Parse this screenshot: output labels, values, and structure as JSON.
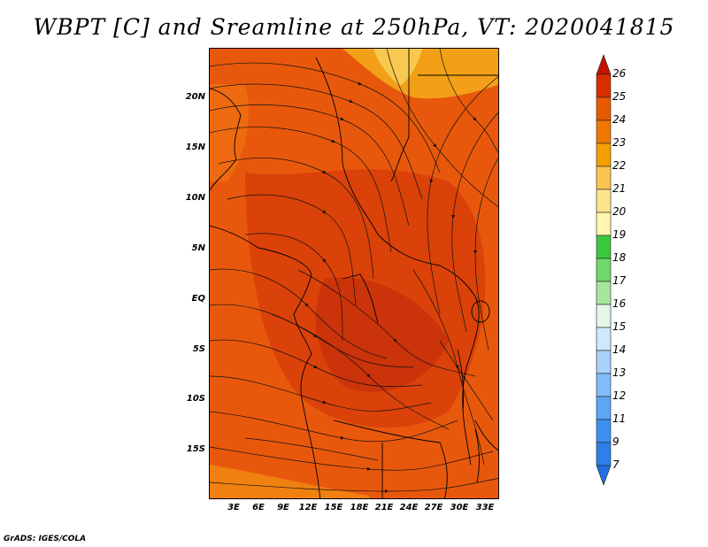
{
  "title": "WBPT [C] and Sreamline at 250hPa, VT: 2020041815",
  "credit": "GrADS: IGES/COLA",
  "map": {
    "lat_labels": [
      "20N",
      "15N",
      "10N",
      "5N",
      "EQ",
      "5S",
      "10S",
      "15S"
    ],
    "lon_labels": [
      "3E",
      "6E",
      "9E",
      "12E",
      "15E",
      "18E",
      "21E",
      "24E",
      "27E",
      "30E",
      "33E"
    ]
  },
  "colorbar": {
    "levels": [
      "7",
      "9",
      "11",
      "12",
      "13",
      "14",
      "15",
      "16",
      "17",
      "18",
      "19",
      "20",
      "21",
      "22",
      "23",
      "24",
      "25",
      "26"
    ],
    "colors": [
      "#1e6fe0",
      "#2c80e8",
      "#3c90f0",
      "#5ca6f4",
      "#82bcf8",
      "#a8d2fa",
      "#cfe8fb",
      "#e4f6e6",
      "#a6e59e",
      "#6ed86a",
      "#3cc83c",
      "#fff6b0",
      "#fde48c",
      "#fbc650",
      "#f5a000",
      "#f07800",
      "#e85a00",
      "#d82e00",
      "#c41200"
    ]
  }
}
